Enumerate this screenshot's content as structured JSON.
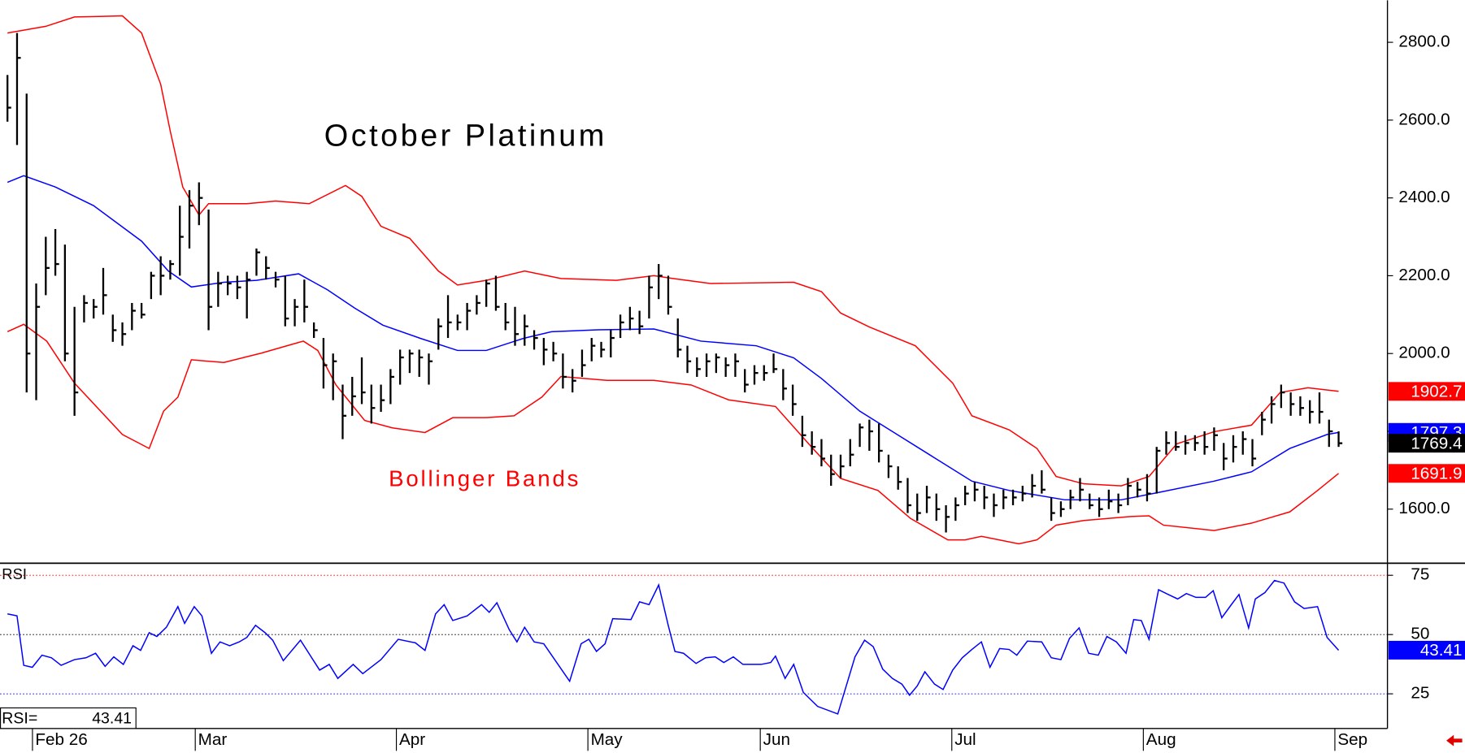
{
  "chart_data": [
    {
      "type": "ohlc",
      "title": "October Platinum",
      "annotation": "Bollinger Bands",
      "annotation_color": "#ff0000",
      "color": "#000000",
      "categories": [
        null,
        null,
        null,
        "Feb 26",
        null,
        null,
        null,
        null,
        null,
        null,
        null,
        null,
        null,
        null,
        null,
        null,
        null,
        null,
        null,
        null,
        "Mar",
        null,
        null,
        null,
        null,
        null,
        null,
        null,
        null,
        null,
        null,
        null,
        null,
        null,
        null,
        null,
        null,
        null,
        null,
        null,
        null,
        "Apr",
        null,
        null,
        null,
        null,
        null,
        null,
        null,
        null,
        null,
        null,
        null,
        null,
        null,
        null,
        null,
        null,
        null,
        null,
        null,
        "May",
        null,
        null,
        null,
        null,
        null,
        null,
        null,
        null,
        null,
        null,
        null,
        null,
        null,
        null,
        null,
        null,
        null,
        "Jun",
        null,
        null,
        null,
        null,
        null,
        null,
        null,
        null,
        null,
        null,
        null,
        null,
        null,
        null,
        null,
        null,
        null,
        null,
        null,
        "Jul",
        null,
        null,
        null,
        null,
        null,
        null,
        null,
        null,
        null,
        null,
        null,
        null,
        null,
        null,
        null,
        null,
        null,
        null,
        null,
        "Aug",
        null,
        null,
        null,
        null,
        null,
        null,
        null,
        null,
        null,
        null,
        null,
        null,
        null,
        null,
        null,
        null,
        null,
        null,
        null,
        "Sep"
      ],
      "high": [
        2716,
        2824,
        2668,
        2180,
        2300,
        2320,
        2280,
        2120,
        2150,
        2140,
        2220,
        2100,
        2080,
        2130,
        2130,
        2210,
        2250,
        2240,
        2380,
        2420,
        2440,
        2370,
        2210,
        2200,
        2200,
        2210,
        2270,
        2250,
        2210,
        2200,
        2140,
        2190,
        2080,
        2040,
        2000,
        1920,
        1940,
        1990,
        1920,
        1920,
        1960,
        2010,
        2010,
        2010,
        2000,
        2090,
        2150,
        2100,
        2130,
        2150,
        2190,
        2200,
        2130,
        2120,
        2100,
        2060,
        2040,
        2030,
        2000,
        1960,
        2010,
        2040,
        2030,
        2060,
        2100,
        2120,
        2110,
        2200,
        2230,
        2200,
        2090,
        2020,
        1990,
        2000,
        2000,
        1990,
        2000,
        1960,
        1970,
        1970,
        2000,
        1960,
        1920,
        1840,
        1800,
        1780,
        1740,
        1740,
        1780,
        1820,
        1830,
        1820,
        1740,
        1710,
        1680,
        1640,
        1660,
        1640,
        1610,
        1630,
        1660,
        1670,
        1660,
        1640,
        1650,
        1650,
        1660,
        1690,
        1700,
        1630,
        1620,
        1650,
        1680,
        1640,
        1630,
        1650,
        1640,
        1680,
        1670,
        1690,
        1760,
        1800,
        1800,
        1790,
        1790,
        1800,
        1810,
        1770,
        1790,
        1800,
        1780,
        1850,
        1890,
        1920,
        1900,
        1890,
        1880,
        1900,
        1830,
        1800
      ],
      "low": [
        2596,
        2536,
        1900,
        1880,
        2150,
        2200,
        1980,
        1840,
        2080,
        2090,
        2100,
        2030,
        2020,
        2060,
        2090,
        2140,
        2150,
        2190,
        2200,
        2270,
        2330,
        2060,
        2120,
        2150,
        2140,
        2090,
        2200,
        2190,
        2170,
        2070,
        2070,
        2080,
        2040,
        1910,
        1880,
        1780,
        1840,
        1870,
        1820,
        1850,
        1870,
        1920,
        1950,
        1940,
        1920,
        2010,
        2040,
        2060,
        2060,
        2100,
        2120,
        2110,
        2060,
        2020,
        2020,
        2010,
        1970,
        1980,
        1910,
        1900,
        1940,
        1980,
        1990,
        1990,
        2040,
        2060,
        2050,
        2090,
        2140,
        2100,
        1990,
        1950,
        1940,
        1940,
        1950,
        1940,
        1940,
        1900,
        1920,
        1930,
        1950,
        1880,
        1840,
        1760,
        1740,
        1710,
        1660,
        1680,
        1710,
        1760,
        1750,
        1720,
        1680,
        1650,
        1590,
        1570,
        1590,
        1570,
        1540,
        1570,
        1610,
        1620,
        1600,
        1580,
        1600,
        1610,
        1620,
        1630,
        1640,
        1570,
        1580,
        1600,
        1620,
        1600,
        1580,
        1600,
        1590,
        1610,
        1630,
        1620,
        1640,
        1740,
        1750,
        1740,
        1750,
        1740,
        1750,
        1700,
        1720,
        1740,
        1710,
        1790,
        1820,
        1860,
        1840,
        1840,
        1820,
        1820,
        1760,
        1760
      ],
      "close": [
        2632,
        2760,
        2000,
        2120,
        2220,
        2230,
        2000,
        1900,
        2130,
        2120,
        2150,
        2060,
        2050,
        2110,
        2100,
        2200,
        2200,
        2230,
        2300,
        2380,
        2400,
        2120,
        2180,
        2180,
        2170,
        2190,
        2260,
        2220,
        2190,
        2090,
        2120,
        2120,
        2060,
        1970,
        1980,
        1840,
        1890,
        1900,
        1860,
        1880,
        1940,
        1990,
        2000,
        1990,
        1980,
        2070,
        2080,
        2080,
        2110,
        2130,
        2180,
        2120,
        2080,
        2050,
        2070,
        2040,
        2010,
        2000,
        1940,
        1930,
        1970,
        2020,
        2010,
        2040,
        2080,
        2090,
        2070,
        2170,
        2200,
        2120,
        2010,
        1980,
        1960,
        1980,
        1990,
        1970,
        1980,
        1920,
        1950,
        1950,
        1960,
        1910,
        1870,
        1790,
        1760,
        1730,
        1690,
        1710,
        1740,
        1810,
        1800,
        1750,
        1710,
        1670,
        1610,
        1590,
        1630,
        1600,
        1580,
        1610,
        1640,
        1650,
        1630,
        1610,
        1630,
        1630,
        1640,
        1660,
        1650,
        1590,
        1600,
        1630,
        1650,
        1610,
        1600,
        1620,
        1610,
        1660,
        1650,
        1640,
        1750,
        1770,
        1760,
        1770,
        1770,
        1760,
        1790,
        1730,
        1760,
        1780,
        1730,
        1830,
        1870,
        1900,
        1870,
        1860,
        1850,
        1850,
        1800,
        1769.4
      ],
      "bands": [
        {
          "color": "#ff0000",
          "x": [
            0,
            4,
            7,
            12,
            14,
            16,
            17,
            18.3,
            20,
            21,
            25,
            28,
            31.5,
            35.3,
            37,
            39,
            42,
            45,
            47,
            50,
            54,
            57.8,
            63.6,
            67.5,
            69.5,
            73.4,
            82.1,
            85,
            87,
            90,
            94.8,
            98.7,
            100.7,
            104.6,
            107.5,
            109.5,
            112.4,
            116.3,
            119.2,
            122.1,
            126,
            129.9,
            132.9,
            135.8,
            139
          ],
          "values": [
            2824,
            2841,
            2865,
            2868,
            2824,
            2692,
            2572,
            2428,
            2356,
            2385,
            2385,
            2392,
            2385,
            2432,
            2404,
            2327,
            2296,
            2212,
            2176,
            2188,
            2212,
            2193,
            2188,
            2200,
            2193,
            2180,
            2183,
            2159,
            2104,
            2068,
            2020,
            1924,
            1840,
            1804,
            1756,
            1684,
            1665,
            1660,
            1684,
            1768,
            1799,
            1816,
            1900,
            1912,
            1902.7
          ]
        },
        {
          "color": "#ff0000",
          "x": [
            0,
            1.7,
            4.1,
            7,
            12,
            14.8,
            16.3,
            17.8,
            19.2,
            22.6,
            26.5,
            29.9,
            30.9,
            32.4,
            34.3,
            37.3,
            40.2,
            43.6,
            46.5,
            50,
            52.9,
            55.8,
            57.8,
            62.6,
            67.5,
            71.4,
            75.3,
            80.2,
            84.1,
            87,
            90.9,
            94.3,
            98.2,
            100,
            101.7,
            105.6,
            107.5,
            109.5,
            112.4,
            117.3,
            119.2,
            120.7,
            126,
            129.9,
            133.9,
            136.8,
            139
          ],
          "values": [
            2056,
            2075,
            2032,
            1924,
            1792,
            1756,
            1852,
            1888,
            1984,
            1977,
            2001,
            2025,
            2032,
            2008,
            1919,
            1828,
            1809,
            1797,
            1835,
            1835,
            1840,
            1888,
            1941,
            1931,
            1931,
            1919,
            1881,
            1864,
            1756,
            1679,
            1648,
            1576,
            1521,
            1521,
            1530,
            1511,
            1521,
            1559,
            1571,
            1581,
            1583,
            1559,
            1545,
            1564,
            1593,
            1648,
            1691.9
          ]
        },
        {
          "color": "#0000ff",
          "x": [
            0,
            1.7,
            5,
            9,
            14,
            16.8,
            19.2,
            22.6,
            26,
            30.4,
            33.4,
            36.3,
            39.2,
            43.1,
            47,
            50,
            53.9,
            56.8,
            61.7,
            67.5,
            72.4,
            78.2,
            82.1,
            85,
            89,
            92.9,
            96.8,
            100.7,
            104.6,
            110.4,
            116.3,
            120.2,
            126,
            129.9,
            133.9,
            137.8,
            139
          ],
          "values": [
            2440,
            2457,
            2428,
            2380,
            2289,
            2212,
            2171,
            2183,
            2188,
            2205,
            2164,
            2116,
            2073,
            2039,
            2008,
            2008,
            2039,
            2056,
            2061,
            2063,
            2032,
            2020,
            1989,
            1936,
            1852,
            1792,
            1732,
            1672,
            1648,
            1624,
            1624,
            1643,
            1672,
            1696,
            1756,
            1792,
            1797.3
          ]
        }
      ],
      "xlim": [
        -0.78,
        144.1
      ],
      "ylim": [
        1461,
        2908
      ],
      "yticks": [
        {
          "value": 1600,
          "label": "1600.0"
        },
        {
          "value": 1800,
          "label": "1800.0"
        },
        {
          "value": 2000,
          "label": "2000.0"
        },
        {
          "value": 2200,
          "label": "2200.0"
        },
        {
          "value": 2400,
          "label": "2400.0"
        },
        {
          "value": 2600,
          "label": "2600.0"
        },
        {
          "value": 2800,
          "label": "2800.0"
        }
      ]
    },
    {
      "type": "line",
      "label": "RSI",
      "readout_label": "RSI=",
      "series": [
        {
          "color": "#0000ff",
          "x": [
            0,
            1,
            1.7,
            2.6,
            3.6,
            4.6,
            5.6,
            7,
            8.2,
            9.2,
            10.2,
            11.1,
            12.1,
            13.1,
            13.9,
            14.8,
            15.6,
            16.6,
            17.8,
            18.5,
            19.5,
            20.3,
            21.3,
            22.2,
            23.2,
            24.2,
            25,
            25.9,
            26.9,
            27.7,
            28.8,
            30.6,
            32.6,
            33.6,
            34.5,
            36.1,
            37.1,
            39,
            40.8,
            42.6,
            43.6,
            44.7,
            45.6,
            46.5,
            48,
            49.5,
            50.3,
            51.1,
            52.4,
            53.2,
            54,
            55,
            56,
            58.7,
            59.9,
            60.7,
            61.5,
            62.4,
            63.2,
            65.1,
            66,
            67,
            68,
            69,
            69.7,
            70.6,
            71.9,
            72.9,
            73.9,
            74.8,
            75.8,
            76.8,
            78.7,
            79.7,
            80.2,
            81.2,
            82.1,
            83.1,
            84.6,
            86.7,
            88.5,
            89.5,
            90.4,
            91.4,
            92.4,
            93.4,
            94.2,
            95,
            95.8,
            96.8,
            97.7,
            98.7,
            99.7,
            100.7,
            101.7,
            102.6,
            103.6,
            104.6,
            105.4,
            106.5,
            108,
            109,
            110,
            110.9,
            111.9,
            112.9,
            113.9,
            114.8,
            115.8,
            116.8,
            117.6,
            118.4,
            119.2,
            120.2,
            121.2,
            122.2,
            123.1,
            124.1,
            125.1,
            125.9,
            126.8,
            127.8,
            128.6,
            129.6,
            130.3,
            131.3,
            132.3,
            133.3,
            134.4,
            135.4,
            136.8,
            137.8,
            139
          ],
          "values": [
            58.7,
            57.9,
            37,
            36.2,
            41.3,
            40.2,
            37,
            39.4,
            40.2,
            42.1,
            36.6,
            40.6,
            37.4,
            45.3,
            43.3,
            50.8,
            49.2,
            53.1,
            61.8,
            54.7,
            61.8,
            57.9,
            42.1,
            46.9,
            45.3,
            46.9,
            48.8,
            53.9,
            50.8,
            47.6,
            39,
            47.6,
            35,
            37.4,
            31.5,
            37.4,
            33.5,
            39.4,
            48,
            46.5,
            43.3,
            58.7,
            62.6,
            55.9,
            57.9,
            62.6,
            59.4,
            63.4,
            52,
            46.9,
            53.1,
            46.9,
            46.1,
            30.3,
            46.1,
            48,
            42.9,
            46.1,
            56.7,
            56.3,
            63.8,
            62.6,
            70.9,
            53.9,
            42.9,
            42.1,
            37.8,
            40.2,
            40.6,
            38.2,
            40.6,
            37.4,
            37.4,
            38.2,
            40.9,
            31.5,
            37.4,
            25.6,
            19.7,
            16.5,
            40.6,
            47.6,
            44.9,
            35.4,
            31.5,
            29.1,
            24.4,
            28.3,
            34.3,
            29.1,
            26.8,
            35,
            40.2,
            43.7,
            46.9,
            36.2,
            44.1,
            43.7,
            41.3,
            47.2,
            46.9,
            40.2,
            39.4,
            48.4,
            52.8,
            42.1,
            41.3,
            49.2,
            46.9,
            42.1,
            56.3,
            55.9,
            48,
            68.9,
            66.9,
            65,
            67.3,
            65.7,
            65.7,
            68.5,
            57.1,
            62.6,
            66.9,
            52.8,
            65,
            67.7,
            72.8,
            71.7,
            63.8,
            61,
            61.8,
            48.8,
            43.41
          ]
        }
      ],
      "xlim": [
        -0.78,
        144.1
      ],
      "ylim": [
        10.4,
        79.7
      ],
      "yticks": [
        25,
        50,
        75
      ],
      "grid_colors": [
        "#0000ff",
        "#000000",
        "#ff0000"
      ]
    }
  ]
}
